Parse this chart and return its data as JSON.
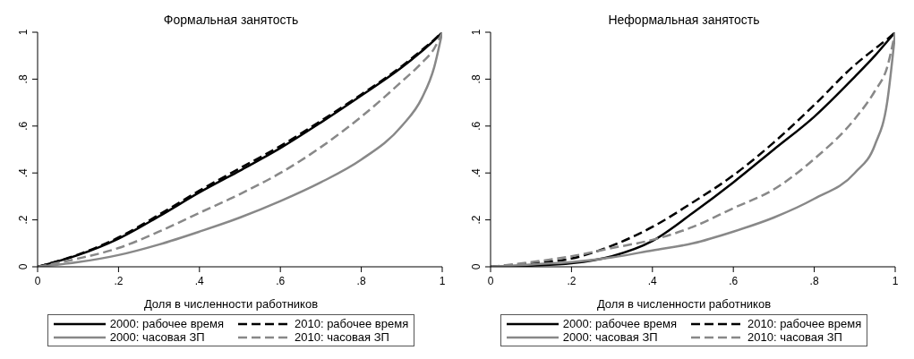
{
  "chart_data": [
    {
      "type": "line",
      "title": "Формальная занятость",
      "xlabel": "Доля в численности работников",
      "x": [
        0,
        0.1,
        0.2,
        0.3,
        0.4,
        0.5,
        0.6,
        0.7,
        0.8,
        0.9,
        0.95,
        0.98,
        1
      ],
      "series": [
        {
          "name": "2000: рабочее время",
          "color": "#000000",
          "line_style": "solid",
          "values": [
            0,
            0.05,
            0.12,
            0.215,
            0.317,
            0.41,
            0.506,
            0.615,
            0.73,
            0.85,
            0.92,
            0.965,
            1
          ]
        },
        {
          "name": "2010: рабочее время",
          "color": "#000000",
          "line_style": "dashed",
          "values": [
            0,
            0.052,
            0.125,
            0.222,
            0.325,
            0.42,
            0.515,
            0.622,
            0.735,
            0.855,
            0.925,
            0.968,
            1
          ]
        },
        {
          "name": "2000: часовая ЗП",
          "color": "#888888",
          "line_style": "solid",
          "values": [
            0,
            0.02,
            0.05,
            0.095,
            0.15,
            0.21,
            0.28,
            0.36,
            0.457,
            0.6,
            0.72,
            0.85,
            1
          ]
        },
        {
          "name": "2010: часовая ЗП",
          "color": "#888888",
          "line_style": "dashed",
          "values": [
            0,
            0.035,
            0.08,
            0.15,
            0.23,
            0.31,
            0.4,
            0.51,
            0.64,
            0.79,
            0.87,
            0.93,
            1
          ]
        }
      ],
      "xlim": [
        0,
        1
      ],
      "ylim": [
        0,
        1
      ],
      "xticks": [
        {
          "value": 0,
          "label": "0"
        },
        {
          "value": 0.2,
          "label": ".2"
        },
        {
          "value": 0.4,
          "label": ".4"
        },
        {
          "value": 0.6,
          "label": ".6"
        },
        {
          "value": 0.8,
          "label": ".8"
        },
        {
          "value": 1,
          "label": "1"
        }
      ],
      "yticks": [
        {
          "value": 0,
          "label": "0"
        },
        {
          "value": 0.2,
          "label": ".2"
        },
        {
          "value": 0.4,
          "label": ".4"
        },
        {
          "value": 0.6,
          "label": ".6"
        },
        {
          "value": 0.8,
          "label": ".8"
        },
        {
          "value": 1,
          "label": "1"
        }
      ],
      "legend": "bottom",
      "marker": "none"
    },
    {
      "type": "line",
      "title": "Неформальная занятость",
      "xlabel": "Доля в численности работников",
      "x": [
        0,
        0.1,
        0.2,
        0.3,
        0.4,
        0.5,
        0.6,
        0.7,
        0.8,
        0.9,
        0.95,
        0.98,
        1
      ],
      "series": [
        {
          "name": "2000: рабочее время",
          "color": "#000000",
          "line_style": "solid",
          "values": [
            0,
            0.005,
            0.015,
            0.045,
            0.11,
            0.23,
            0.36,
            0.5,
            0.64,
            0.81,
            0.9,
            0.96,
            1
          ]
        },
        {
          "name": "2010: рабочее время",
          "color": "#000000",
          "line_style": "dashed",
          "values": [
            0,
            0.015,
            0.035,
            0.09,
            0.17,
            0.275,
            0.39,
            0.53,
            0.69,
            0.86,
            0.93,
            0.97,
            1
          ]
        },
        {
          "name": "2000: часовая ЗП",
          "color": "#888888",
          "line_style": "solid",
          "values": [
            0,
            0.01,
            0.02,
            0.04,
            0.07,
            0.1,
            0.15,
            0.21,
            0.29,
            0.4,
            0.52,
            0.7,
            1
          ]
        },
        {
          "name": "2010: часовая ЗП",
          "color": "#888888",
          "line_style": "dashed",
          "values": [
            0,
            0.02,
            0.045,
            0.08,
            0.115,
            0.17,
            0.25,
            0.33,
            0.46,
            0.63,
            0.75,
            0.85,
            1
          ]
        }
      ],
      "xlim": [
        0,
        1
      ],
      "ylim": [
        0,
        1
      ],
      "xticks": [
        {
          "value": 0,
          "label": "0"
        },
        {
          "value": 0.2,
          "label": ".2"
        },
        {
          "value": 0.4,
          "label": ".4"
        },
        {
          "value": 0.6,
          "label": ".6"
        },
        {
          "value": 0.8,
          "label": ".8"
        },
        {
          "value": 1,
          "label": "1"
        }
      ],
      "yticks": [
        {
          "value": 0,
          "label": "0"
        },
        {
          "value": 0.2,
          "label": ".2"
        },
        {
          "value": 0.4,
          "label": ".4"
        },
        {
          "value": 0.6,
          "label": ".6"
        },
        {
          "value": 0.8,
          "label": ".8"
        },
        {
          "value": 1,
          "label": "1"
        }
      ],
      "legend": "bottom",
      "marker": "none"
    }
  ]
}
